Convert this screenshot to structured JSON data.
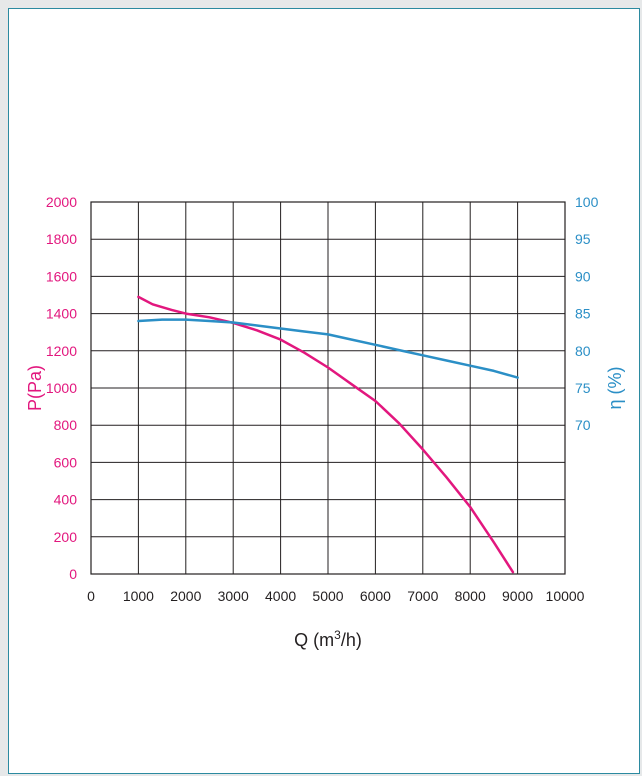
{
  "chart_data": {
    "type": "line",
    "xlabel": "Q (m",
    "xlabel_sup": "3",
    "xlabel_suffix": "/h)",
    "ylabel_left": "P(Pa)",
    "ylabel_right": "η (%)",
    "xlim": [
      0,
      10000
    ],
    "ylim_left": [
      0,
      2000
    ],
    "ylim_right_ticks": [
      100,
      95,
      90,
      85,
      80,
      75,
      70
    ],
    "x_ticks": [
      0,
      1000,
      2000,
      3000,
      4000,
      5000,
      6000,
      7000,
      8000,
      9000,
      10000
    ],
    "y_ticks_left": [
      0,
      200,
      400,
      600,
      800,
      1000,
      1200,
      1400,
      1600,
      1800,
      2000
    ],
    "grid": true,
    "colors": {
      "pressure": "#e2177e",
      "efficiency": "#2b8fc6",
      "axis": "#231f20"
    },
    "series": [
      {
        "axis": "left",
        "x": [
          1000,
          1300,
          1700,
          2000,
          2500,
          3000,
          3500,
          4000,
          4500,
          5000,
          5500,
          6000,
          6500,
          7000,
          7500,
          8000,
          8500,
          8900
        ],
        "values": [
          1490,
          1450,
          1420,
          1400,
          1380,
          1350,
          1310,
          1260,
          1190,
          1110,
          1020,
          930,
          810,
          670,
          520,
          360,
          170,
          10
        ]
      },
      {
        "axis": "right",
        "x": [
          1000,
          1500,
          2000,
          2500,
          3000,
          3500,
          4000,
          4500,
          5000,
          5500,
          6000,
          6500,
          7000,
          7500,
          8000,
          8500,
          9000
        ],
        "values": [
          84.0,
          84.2,
          84.2,
          84.0,
          83.8,
          83.4,
          83.0,
          82.6,
          82.2,
          81.5,
          80.8,
          80.1,
          79.4,
          78.7,
          78.0,
          77.3,
          76.4
        ]
      }
    ]
  }
}
